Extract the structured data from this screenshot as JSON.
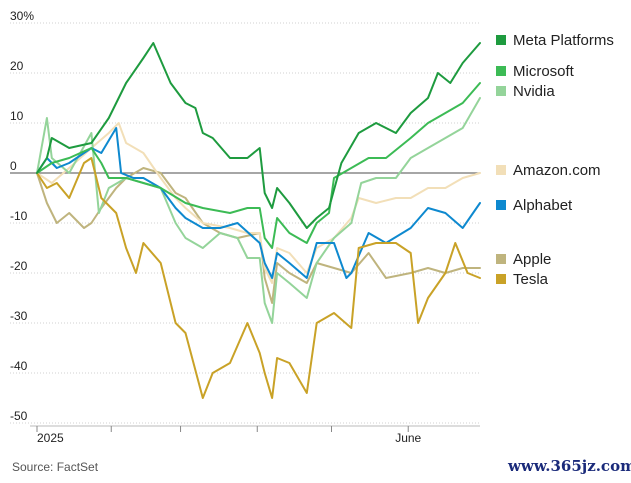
{
  "chart_data": {
    "type": "line",
    "ylim": [
      -50,
      30
    ],
    "y_ticks": [
      {
        "value": 30,
        "label": "30%"
      },
      {
        "value": 20,
        "label": "20"
      },
      {
        "value": 10,
        "label": "10"
      },
      {
        "value": 0,
        "label": "0"
      },
      {
        "value": -10,
        "label": "-10"
      },
      {
        "value": -20,
        "label": "-20"
      },
      {
        "value": -30,
        "label": "-30"
      },
      {
        "value": -40,
        "label": "-40"
      },
      {
        "value": -50,
        "label": "-50"
      }
    ],
    "x_ticks": [
      {
        "date": "2025-01-02",
        "label": "2025"
      },
      {
        "date": "2025-02-01",
        "label": ""
      },
      {
        "date": "2025-03-01",
        "label": ""
      },
      {
        "date": "2025-04-01",
        "label": ""
      },
      {
        "date": "2025-05-01",
        "label": ""
      },
      {
        "date": "2025-06-01",
        "label": "June"
      }
    ],
    "grid": "horizontal",
    "legend_placement": "right",
    "series": [
      {
        "name": "Meta Platforms",
        "color": "#1e9b3f",
        "points": [
          [
            "2025-01-02",
            0
          ],
          [
            "2025-01-06",
            3
          ],
          [
            "2025-01-08",
            7
          ],
          [
            "2025-01-15",
            5
          ],
          [
            "2025-01-24",
            6
          ],
          [
            "2025-01-31",
            11
          ],
          [
            "2025-02-07",
            18
          ],
          [
            "2025-02-14",
            23
          ],
          [
            "2025-02-18",
            26
          ],
          [
            "2025-02-25",
            18
          ],
          [
            "2025-03-03",
            14
          ],
          [
            "2025-03-07",
            13
          ],
          [
            "2025-03-10",
            8
          ],
          [
            "2025-03-14",
            7
          ],
          [
            "2025-03-21",
            3
          ],
          [
            "2025-03-28",
            3
          ],
          [
            "2025-04-02",
            5
          ],
          [
            "2025-04-04",
            -4
          ],
          [
            "2025-04-07",
            -7
          ],
          [
            "2025-04-09",
            -3
          ],
          [
            "2025-04-14",
            -6
          ],
          [
            "2025-04-21",
            -11
          ],
          [
            "2025-04-25",
            -9
          ],
          [
            "2025-04-30",
            -7
          ],
          [
            "2025-05-05",
            2
          ],
          [
            "2025-05-12",
            8
          ],
          [
            "2025-05-19",
            10
          ],
          [
            "2025-05-27",
            8
          ],
          [
            "2025-06-02",
            12
          ],
          [
            "2025-06-09",
            15
          ],
          [
            "2025-06-13",
            20
          ],
          [
            "2025-06-18",
            18
          ],
          [
            "2025-06-23",
            22
          ],
          [
            "2025-06-30",
            26
          ]
        ]
      },
      {
        "name": "Microsoft",
        "color": "#3cbb55",
        "points": [
          [
            "2025-01-02",
            0
          ],
          [
            "2025-01-08",
            2
          ],
          [
            "2025-01-15",
            3
          ],
          [
            "2025-01-24",
            5
          ],
          [
            "2025-01-28",
            2
          ],
          [
            "2025-01-31",
            -1
          ],
          [
            "2025-02-07",
            -1
          ],
          [
            "2025-02-14",
            -2
          ],
          [
            "2025-02-21",
            -3
          ],
          [
            "2025-03-03",
            -6
          ],
          [
            "2025-03-10",
            -7
          ],
          [
            "2025-03-21",
            -8
          ],
          [
            "2025-03-28",
            -7
          ],
          [
            "2025-04-02",
            -7
          ],
          [
            "2025-04-04",
            -13
          ],
          [
            "2025-04-07",
            -15
          ],
          [
            "2025-04-09",
            -9
          ],
          [
            "2025-04-14",
            -12
          ],
          [
            "2025-04-21",
            -14
          ],
          [
            "2025-04-25",
            -10
          ],
          [
            "2025-04-30",
            -8
          ],
          [
            "2025-05-02",
            -1
          ],
          [
            "2025-05-09",
            1
          ],
          [
            "2025-05-16",
            3
          ],
          [
            "2025-05-23",
            3
          ],
          [
            "2025-06-02",
            7
          ],
          [
            "2025-06-09",
            10
          ],
          [
            "2025-06-16",
            12
          ],
          [
            "2025-06-23",
            14
          ],
          [
            "2025-06-30",
            18
          ]
        ]
      },
      {
        "name": "Nvidia",
        "color": "#94d49a",
        "points": [
          [
            "2025-01-02",
            0
          ],
          [
            "2025-01-06",
            11
          ],
          [
            "2025-01-08",
            3
          ],
          [
            "2025-01-15",
            0
          ],
          [
            "2025-01-24",
            8
          ],
          [
            "2025-01-27",
            -8
          ],
          [
            "2025-01-31",
            -3
          ],
          [
            "2025-02-07",
            -1
          ],
          [
            "2025-02-14",
            -2
          ],
          [
            "2025-02-21",
            -3
          ],
          [
            "2025-02-27",
            -10
          ],
          [
            "2025-03-03",
            -13
          ],
          [
            "2025-03-10",
            -15
          ],
          [
            "2025-03-17",
            -12
          ],
          [
            "2025-03-24",
            -13
          ],
          [
            "2025-03-28",
            -17
          ],
          [
            "2025-04-02",
            -17
          ],
          [
            "2025-04-04",
            -26
          ],
          [
            "2025-04-07",
            -30
          ],
          [
            "2025-04-09",
            -20
          ],
          [
            "2025-04-14",
            -22
          ],
          [
            "2025-04-21",
            -25
          ],
          [
            "2025-04-25",
            -18
          ],
          [
            "2025-05-02",
            -13
          ],
          [
            "2025-05-09",
            -10
          ],
          [
            "2025-05-13",
            -2
          ],
          [
            "2025-05-19",
            -1
          ],
          [
            "2025-05-27",
            -1
          ],
          [
            "2025-06-02",
            3
          ],
          [
            "2025-06-09",
            5
          ],
          [
            "2025-06-16",
            7
          ],
          [
            "2025-06-23",
            9
          ],
          [
            "2025-06-30",
            15
          ]
        ]
      },
      {
        "name": "Amazon.com",
        "color": "#f2dfb8",
        "points": [
          [
            "2025-01-02",
            0
          ],
          [
            "2025-01-08",
            -2
          ],
          [
            "2025-01-15",
            1
          ],
          [
            "2025-01-24",
            5
          ],
          [
            "2025-01-31",
            8
          ],
          [
            "2025-02-04",
            10
          ],
          [
            "2025-02-07",
            6
          ],
          [
            "2025-02-14",
            4
          ],
          [
            "2025-02-21",
            -1
          ],
          [
            "2025-02-27",
            -5
          ],
          [
            "2025-03-03",
            -7
          ],
          [
            "2025-03-10",
            -10
          ],
          [
            "2025-03-21",
            -11
          ],
          [
            "2025-03-28",
            -12
          ],
          [
            "2025-04-02",
            -12
          ],
          [
            "2025-04-04",
            -19
          ],
          [
            "2025-04-07",
            -22
          ],
          [
            "2025-04-09",
            -15
          ],
          [
            "2025-04-14",
            -16
          ],
          [
            "2025-04-21",
            -20
          ],
          [
            "2025-04-25",
            -15
          ],
          [
            "2025-05-02",
            -13
          ],
          [
            "2025-05-09",
            -9
          ],
          [
            "2025-05-12",
            -5
          ],
          [
            "2025-05-19",
            -6
          ],
          [
            "2025-05-27",
            -5
          ],
          [
            "2025-06-02",
            -5
          ],
          [
            "2025-06-09",
            -3
          ],
          [
            "2025-06-16",
            -3
          ],
          [
            "2025-06-23",
            -1
          ],
          [
            "2025-06-30",
            0
          ]
        ]
      },
      {
        "name": "Alphabet",
        "color": "#0e89cf",
        "points": [
          [
            "2025-01-02",
            0
          ],
          [
            "2025-01-06",
            3
          ],
          [
            "2025-01-10",
            1
          ],
          [
            "2025-01-15",
            2
          ],
          [
            "2025-01-24",
            5
          ],
          [
            "2025-01-28",
            4
          ],
          [
            "2025-02-03",
            9
          ],
          [
            "2025-02-05",
            0
          ],
          [
            "2025-02-10",
            -1
          ],
          [
            "2025-02-14",
            -1
          ],
          [
            "2025-02-21",
            -3
          ],
          [
            "2025-02-27",
            -7
          ],
          [
            "2025-03-03",
            -9
          ],
          [
            "2025-03-10",
            -11
          ],
          [
            "2025-03-17",
            -11
          ],
          [
            "2025-03-24",
            -10
          ],
          [
            "2025-04-02",
            -14
          ],
          [
            "2025-04-04",
            -18
          ],
          [
            "2025-04-07",
            -21
          ],
          [
            "2025-04-09",
            -16
          ],
          [
            "2025-04-14",
            -18
          ],
          [
            "2025-04-21",
            -21
          ],
          [
            "2025-04-25",
            -14
          ],
          [
            "2025-05-02",
            -14
          ],
          [
            "2025-05-07",
            -21
          ],
          [
            "2025-05-09",
            -20
          ],
          [
            "2025-05-16",
            -12
          ],
          [
            "2025-05-23",
            -14
          ],
          [
            "2025-06-02",
            -11
          ],
          [
            "2025-06-09",
            -7
          ],
          [
            "2025-06-16",
            -8
          ],
          [
            "2025-06-23",
            -11
          ],
          [
            "2025-06-30",
            -6
          ]
        ]
      },
      {
        "name": "Apple",
        "color": "#bfb47e",
        "points": [
          [
            "2025-01-02",
            0
          ],
          [
            "2025-01-06",
            -6
          ],
          [
            "2025-01-10",
            -10
          ],
          [
            "2025-01-15",
            -8
          ],
          [
            "2025-01-21",
            -11
          ],
          [
            "2025-01-24",
            -10
          ],
          [
            "2025-01-28",
            -7
          ],
          [
            "2025-02-03",
            -3
          ],
          [
            "2025-02-07",
            -1
          ],
          [
            "2025-02-14",
            1
          ],
          [
            "2025-02-21",
            0
          ],
          [
            "2025-02-27",
            -4
          ],
          [
            "2025-03-03",
            -5
          ],
          [
            "2025-03-10",
            -10
          ],
          [
            "2025-03-17",
            -12
          ],
          [
            "2025-03-24",
            -13
          ],
          [
            "2025-04-02",
            -12
          ],
          [
            "2025-04-04",
            -21
          ],
          [
            "2025-04-07",
            -26
          ],
          [
            "2025-04-09",
            -18
          ],
          [
            "2025-04-14",
            -20
          ],
          [
            "2025-04-21",
            -22
          ],
          [
            "2025-04-25",
            -18
          ],
          [
            "2025-05-02",
            -19
          ],
          [
            "2025-05-09",
            -20
          ],
          [
            "2025-05-16",
            -16
          ],
          [
            "2025-05-23",
            -21
          ],
          [
            "2025-06-02",
            -20
          ],
          [
            "2025-06-09",
            -19
          ],
          [
            "2025-06-16",
            -20
          ],
          [
            "2025-06-23",
            -19
          ],
          [
            "2025-06-30",
            -19
          ]
        ]
      },
      {
        "name": "Tesla",
        "color": "#c9a227",
        "points": [
          [
            "2025-01-02",
            0
          ],
          [
            "2025-01-06",
            -3
          ],
          [
            "2025-01-10",
            -2
          ],
          [
            "2025-01-15",
            -5
          ],
          [
            "2025-01-21",
            2
          ],
          [
            "2025-01-24",
            3
          ],
          [
            "2025-01-28",
            -5
          ],
          [
            "2025-02-03",
            -8
          ],
          [
            "2025-02-07",
            -15
          ],
          [
            "2025-02-11",
            -20
          ],
          [
            "2025-02-14",
            -14
          ],
          [
            "2025-02-21",
            -18
          ],
          [
            "2025-02-27",
            -30
          ],
          [
            "2025-03-03",
            -32
          ],
          [
            "2025-03-10",
            -45
          ],
          [
            "2025-03-14",
            -40
          ],
          [
            "2025-03-21",
            -38
          ],
          [
            "2025-03-28",
            -30
          ],
          [
            "2025-04-02",
            -36
          ],
          [
            "2025-04-04",
            -40
          ],
          [
            "2025-04-07",
            -45
          ],
          [
            "2025-04-09",
            -37
          ],
          [
            "2025-04-14",
            -38
          ],
          [
            "2025-04-21",
            -44
          ],
          [
            "2025-04-25",
            -30
          ],
          [
            "2025-05-02",
            -28
          ],
          [
            "2025-05-09",
            -31
          ],
          [
            "2025-05-12",
            -15
          ],
          [
            "2025-05-19",
            -14
          ],
          [
            "2025-05-27",
            -14
          ],
          [
            "2025-06-02",
            -16
          ],
          [
            "2025-06-05",
            -30
          ],
          [
            "2025-06-09",
            -25
          ],
          [
            "2025-06-16",
            -20
          ],
          [
            "2025-06-20",
            -14
          ],
          [
            "2025-06-25",
            -20
          ],
          [
            "2025-06-30",
            -21
          ]
        ]
      }
    ]
  },
  "source": "Source: FactSet",
  "watermark": "www.365jz.com"
}
